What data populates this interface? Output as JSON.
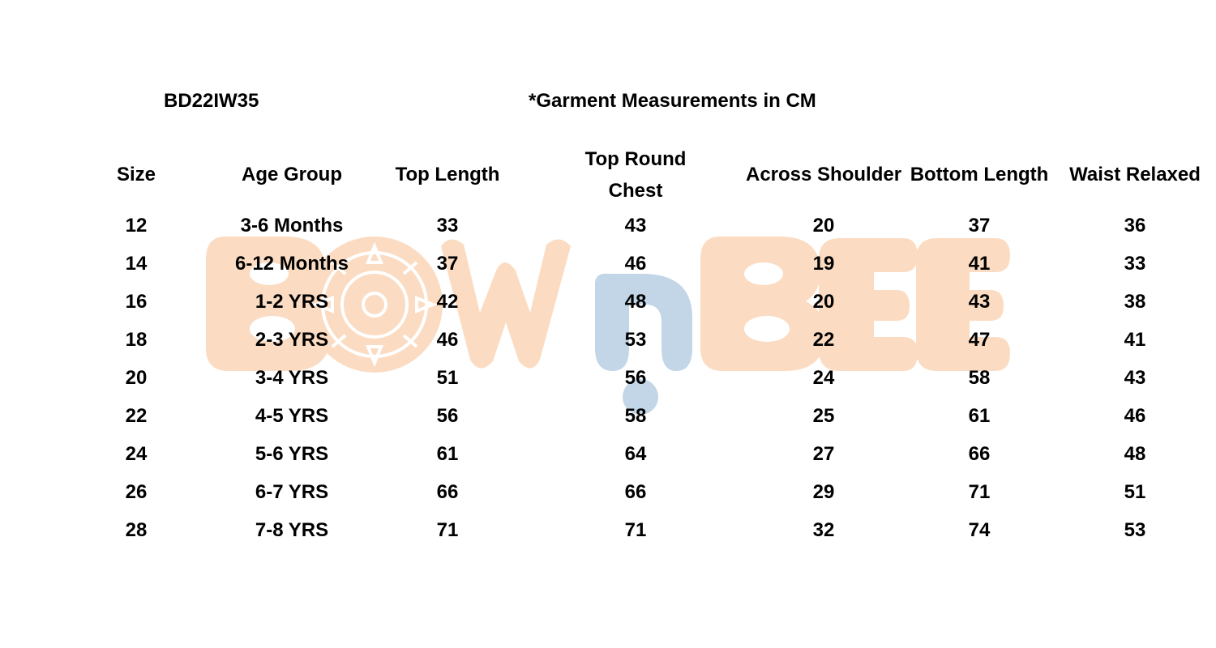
{
  "header": {
    "style_code": "BD22IW35",
    "unit_note": "*Garment Measurements in CM"
  },
  "watermark": {
    "brand_text": "BOWnBEE",
    "colors": {
      "peach": "#fbdcc2",
      "blue": "#c2d6e7"
    }
  },
  "table": {
    "columns": [
      "Size",
      "Age Group",
      "Top Length",
      "Top Round Chest",
      "Across Shoulder",
      "Bottom Length",
      "Waist Relaxed"
    ],
    "rows": [
      [
        "12",
        "3-6 Months",
        "33",
        "43",
        "20",
        "37",
        "36"
      ],
      [
        "14",
        "6-12 Months",
        "37",
        "46",
        "19",
        "41",
        "33"
      ],
      [
        "16",
        "1-2 YRS",
        "42",
        "48",
        "20",
        "43",
        "38"
      ],
      [
        "18",
        "2-3 YRS",
        "46",
        "53",
        "22",
        "47",
        "41"
      ],
      [
        "20",
        "3-4 YRS",
        "51",
        "56",
        "24",
        "58",
        "43"
      ],
      [
        "22",
        "4-5 YRS",
        "56",
        "58",
        "25",
        "61",
        "46"
      ],
      [
        "24",
        "5-6 YRS",
        "61",
        "64",
        "27",
        "66",
        "48"
      ],
      [
        "26",
        "6-7 YRS",
        "66",
        "66",
        "29",
        "71",
        "51"
      ],
      [
        "28",
        "7-8 YRS",
        "71",
        "71",
        "32",
        "74",
        "53"
      ]
    ]
  }
}
